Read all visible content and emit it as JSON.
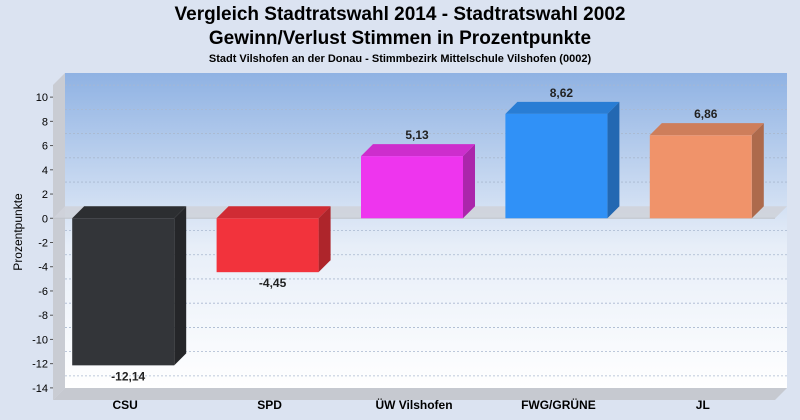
{
  "chart_data": {
    "type": "bar",
    "title": "Vergleich Stadtratswahl 2014 - Stadtratswahl 2002",
    "subtitle": "Gewinn/Verlust Stimmen in Prozentpunkte",
    "subtitle2": "Stadt Vilshofen an der Donau - Stimmbezirk  Mittelschule Vilshofen (0002)",
    "ylabel": "Prozentpunkte",
    "xlabel": "",
    "ylim": [
      -15,
      11
    ],
    "yticks": [
      10,
      8,
      6,
      4,
      2,
      0,
      -2,
      -4,
      -6,
      -8,
      -10,
      -12,
      -14
    ],
    "grid": true,
    "categories": [
      "CSU",
      "SPD",
      "ÜW Vilshofen",
      "FWG/GRÜNE",
      "JL"
    ],
    "values": [
      -12.14,
      -4.45,
      5.13,
      8.62,
      6.86
    ],
    "value_labels": [
      "-12,14",
      "-4,45",
      "5,13",
      "8,62",
      "6,86"
    ],
    "colors": [
      "#333539",
      "#f2333c",
      "#ee35ee",
      "#3091f7",
      "#f0936a"
    ]
  }
}
